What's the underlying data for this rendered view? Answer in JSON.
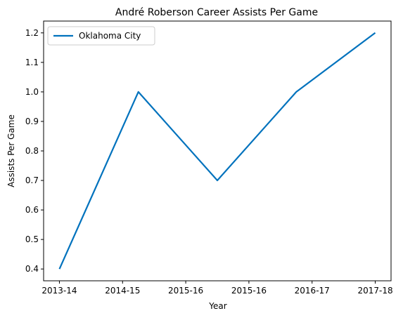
{
  "chart_data": {
    "type": "line",
    "title": "André Roberson Career Assists Per Game",
    "xlabel": "Year",
    "ylabel": "Assists Per Game",
    "x_tick_labels": [
      "2013-14",
      "2014-15",
      "2015-16",
      "2015-16",
      "2016-17",
      "2017-18"
    ],
    "y_ticks": [
      0.4,
      0.5,
      0.6,
      0.7,
      0.8,
      0.9,
      1.0,
      1.1,
      1.2
    ],
    "y_tick_labels": [
      "0.4",
      "0.5",
      "0.6",
      "0.7",
      "0.8",
      "0.9",
      "1.0",
      "1.1",
      "1.2"
    ],
    "ylim": [
      0.36,
      1.24
    ],
    "grid": false,
    "legend_position": "top-left",
    "series": [
      {
        "name": "Oklahoma City",
        "color": "#0072bd",
        "x": [
          0,
          1.25,
          2.5,
          3.75,
          5.0
        ],
        "values": [
          0.4,
          1.0,
          0.7,
          1.0,
          1.2
        ]
      }
    ]
  }
}
